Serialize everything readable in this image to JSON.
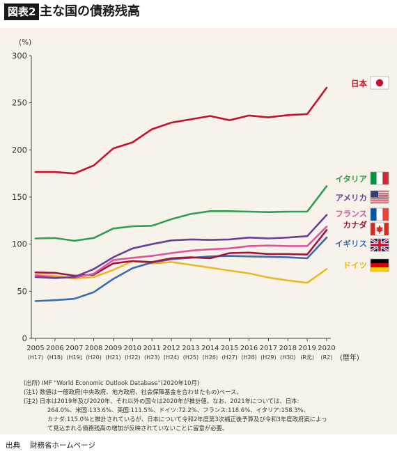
{
  "header": {
    "figure_label": "図表2",
    "title": "主な国の債務残高"
  },
  "chart_data": {
    "type": "line",
    "y_unit": "(%)",
    "x_unit": "(暦年)",
    "ylim": [
      0,
      300
    ],
    "y_ticks": [
      0,
      50,
      100,
      150,
      200,
      250,
      300
    ],
    "grid": false,
    "legend_placement": "right",
    "categories": [
      "2005",
      "2006",
      "2007",
      "2008",
      "2009",
      "2010",
      "2011",
      "2012",
      "2013",
      "2014",
      "2015",
      "2016",
      "2017",
      "2018",
      "2019",
      "2020"
    ],
    "era_labels": [
      "(H17)",
      "(H18)",
      "(H19)",
      "(H20)",
      "(H21)",
      "(H22)",
      "(H23)",
      "(H24)",
      "(H25)",
      "(H26)",
      "(H27)",
      "(H28)",
      "(H29)",
      "(H30)",
      "(R元)",
      "(R2)"
    ],
    "series": [
      {
        "name": "日本",
        "color": "#c8102e",
        "flag": "japan-flag",
        "values": [
          176.5,
          176.5,
          175,
          183.5,
          201.5,
          208,
          222,
          229,
          232.5,
          236,
          231.5,
          236.5,
          234.5,
          237,
          238,
          266
        ]
      },
      {
        "name": "イタリア",
        "color": "#2e9e4f",
        "flag": "italy-flag",
        "values": [
          106,
          106.5,
          103.5,
          106.5,
          116.5,
          119,
          119.5,
          126.5,
          132,
          135,
          135,
          134.5,
          134,
          134.5,
          134.5,
          161.5
        ]
      },
      {
        "name": "アメリカ",
        "color": "#6a3d9a",
        "flag": "usa-flag",
        "values": [
          65,
          64,
          65,
          73.5,
          86,
          95.5,
          100,
          104,
          105,
          104.5,
          105,
          107,
          106,
          107,
          108.5,
          131
        ]
      },
      {
        "name": "フランス",
        "color": "#e0529c",
        "flag": "france-flag",
        "values": [
          67,
          64.5,
          64.5,
          68.5,
          83,
          85.5,
          87.5,
          90.5,
          93,
          94.5,
          95.5,
          98,
          98.5,
          98,
          98,
          118.5
        ]
      },
      {
        "name": "カナダ",
        "color": "#a0153e",
        "flag": "canada-flag",
        "values": [
          70,
          69.5,
          66.5,
          67.5,
          79.5,
          82,
          81,
          85,
          86,
          85,
          90.5,
          91,
          89.5,
          89.5,
          89,
          115
        ]
      },
      {
        "name": "イギリス",
        "color": "#3a6ab0",
        "flag": "uk-flag",
        "values": [
          39.5,
          40.5,
          42,
          49,
          63,
          74.5,
          80.5,
          84,
          85.5,
          87,
          87.5,
          87,
          86.5,
          86,
          85,
          107
        ]
      },
      {
        "name": "ドイツ",
        "color": "#e8b923",
        "flag": "germany-flag",
        "values": [
          67,
          66.5,
          63.5,
          65,
          72.5,
          82,
          79.5,
          81,
          78,
          75,
          72,
          69,
          64.5,
          61.5,
          59,
          73.5
        ]
      }
    ]
  },
  "notes": {
    "source": "(出所) IMF “World Economic Outlook Database”(2020年10月)",
    "note1": "(注1) 数値は一般政府(中央政府、地方政府、社会保障基金を合わせたもの)ベース。",
    "note2_lines": [
      "(注2) 日本は2019年及び2020年、それ以外の国々は2020年が推計値。なお、2021年については、日本:",
      "264.0%、米国:133.6%、英国:111.5%、ドイツ:72.2%、フランス:118.6%、イタリア:158.3%、",
      "カナダ:115.0%と推計されているが、日本について令和2年度第3次補正後予算及び令和3年度政府案によっ",
      "て見込まれる債務残高の増加が反映されていないことに留意が必要。"
    ]
  },
  "footer": {
    "label": "出典",
    "text": "財務省ホームページ"
  }
}
